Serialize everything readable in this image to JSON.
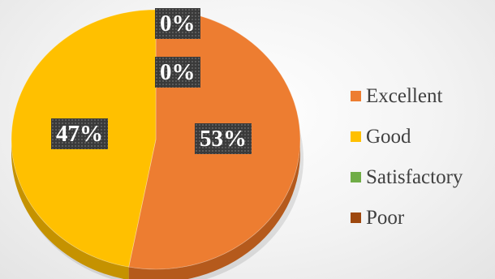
{
  "chart_data": {
    "type": "pie",
    "title": "",
    "legend_position": "right",
    "slices": [
      {
        "name": "Excellent",
        "value": 53,
        "label": "53%",
        "color": "#ED7D31",
        "side_color": "#B55A1C"
      },
      {
        "name": "Good",
        "value": 47,
        "label": "47%",
        "color": "#FFC000",
        "side_color": "#C59200"
      },
      {
        "name": "Satisfactory",
        "value": 0,
        "label": "0%",
        "color": "#70AD47",
        "side_color": "#4E7F30"
      },
      {
        "name": "Poor",
        "value": 0,
        "label": "0%",
        "color": "#9E480E",
        "side_color": "#6E300A"
      }
    ]
  }
}
